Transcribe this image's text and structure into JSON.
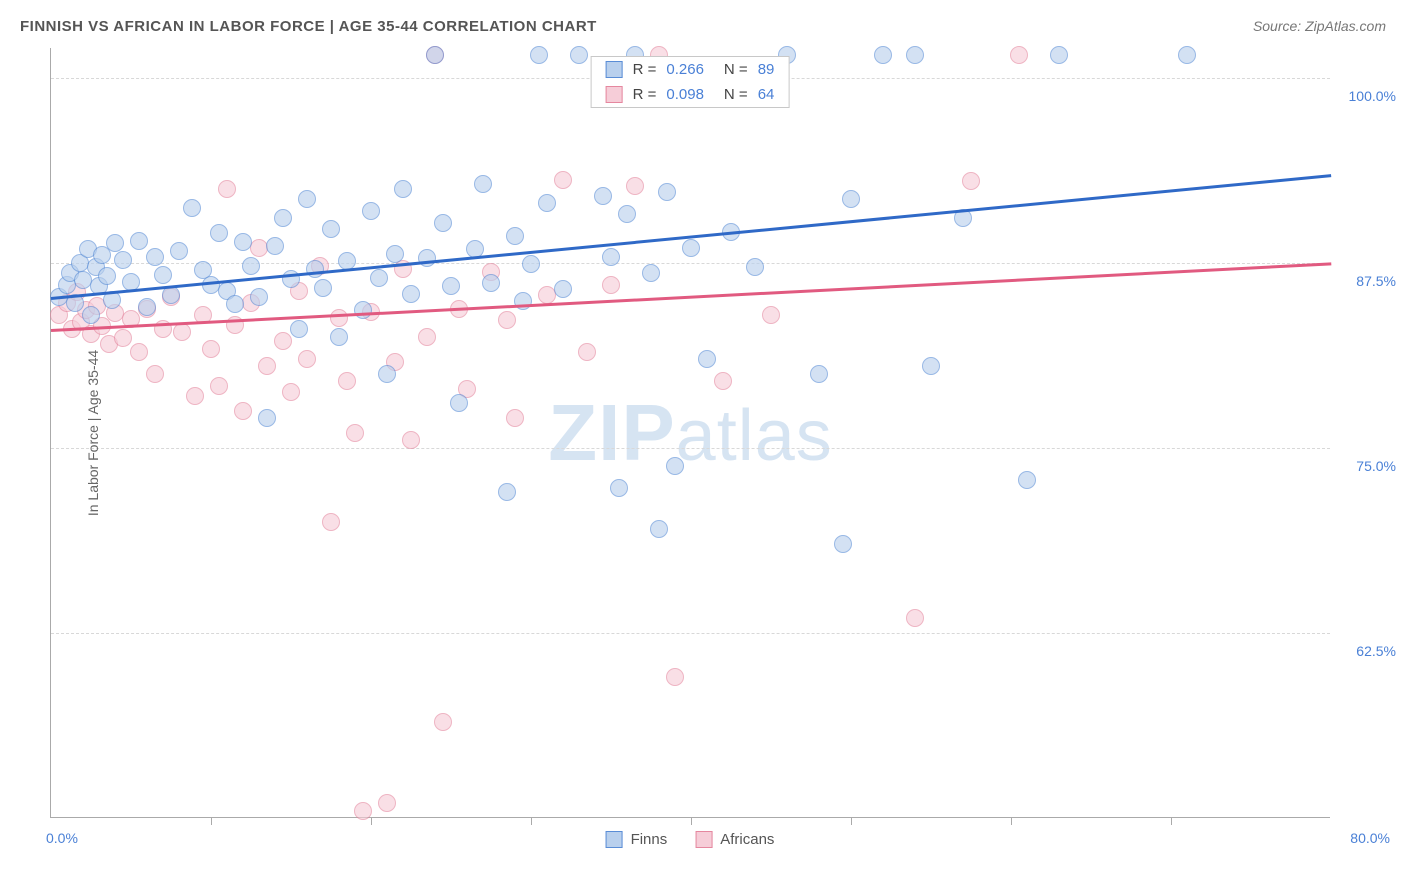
{
  "title": "FINNISH VS AFRICAN IN LABOR FORCE | AGE 35-44 CORRELATION CHART",
  "source": "Source: ZipAtlas.com",
  "watermark": {
    "bold": "ZIP",
    "rest": "atlas"
  },
  "chart": {
    "type": "scatter",
    "background_color": "#ffffff",
    "grid_color": "#d8d8d8",
    "axis_color": "#aaaaaa",
    "y_axis_label": "In Labor Force | Age 35-44",
    "y_axis_label_color": "#666666",
    "tick_label_color": "#4a80d6",
    "xlim": [
      0,
      80
    ],
    "ylim": [
      50,
      102
    ],
    "xlim_labels": [
      "0.0%",
      "80.0%"
    ],
    "xtick_positions": [
      10,
      20,
      30,
      40,
      50,
      60,
      70
    ],
    "yticks": [
      {
        "value": 62.5,
        "label": "62.5%"
      },
      {
        "value": 75.0,
        "label": "75.0%"
      },
      {
        "value": 87.5,
        "label": "87.5%"
      },
      {
        "value": 100.0,
        "label": "100.0%"
      }
    ],
    "marker_radius": 9,
    "marker_opacity": 0.62,
    "series": [
      {
        "name": "Finns",
        "color_fill": "#b9d0ed",
        "color_stroke": "#5a8dd6",
        "trend_color": "#2f69c7",
        "r_value": "0.266",
        "n_value": "89",
        "trend": {
          "x1": 0,
          "y1": 85.2,
          "x2": 80,
          "y2": 93.5
        },
        "points": [
          [
            0.5,
            85.2
          ],
          [
            1.0,
            86.0
          ],
          [
            1.2,
            86.8
          ],
          [
            1.5,
            84.8
          ],
          [
            1.8,
            87.5
          ],
          [
            2.0,
            86.3
          ],
          [
            2.3,
            88.4
          ],
          [
            2.5,
            84.0
          ],
          [
            2.8,
            87.2
          ],
          [
            3.0,
            85.9
          ],
          [
            3.2,
            88.0
          ],
          [
            3.5,
            86.6
          ],
          [
            3.8,
            85.0
          ],
          [
            4.0,
            88.8
          ],
          [
            4.5,
            87.7
          ],
          [
            5.0,
            86.2
          ],
          [
            5.5,
            89.0
          ],
          [
            6.0,
            84.5
          ],
          [
            6.5,
            87.9
          ],
          [
            7.0,
            86.7
          ],
          [
            7.5,
            85.3
          ],
          [
            8.0,
            88.3
          ],
          [
            8.8,
            91.2
          ],
          [
            9.5,
            87.0
          ],
          [
            10.0,
            86.0
          ],
          [
            10.5,
            89.5
          ],
          [
            11.0,
            85.6
          ],
          [
            11.5,
            84.7
          ],
          [
            12.0,
            88.9
          ],
          [
            12.5,
            87.3
          ],
          [
            13.0,
            85.2
          ],
          [
            13.5,
            77.0
          ],
          [
            14.0,
            88.6
          ],
          [
            14.5,
            90.5
          ],
          [
            15.0,
            86.4
          ],
          [
            15.5,
            83.0
          ],
          [
            16.0,
            91.8
          ],
          [
            16.5,
            87.1
          ],
          [
            17.0,
            85.8
          ],
          [
            17.5,
            89.8
          ],
          [
            18.0,
            82.5
          ],
          [
            18.5,
            87.6
          ],
          [
            19.5,
            84.3
          ],
          [
            20.0,
            91.0
          ],
          [
            20.5,
            86.5
          ],
          [
            21.0,
            80.0
          ],
          [
            21.5,
            88.1
          ],
          [
            22.0,
            92.5
          ],
          [
            22.5,
            85.4
          ],
          [
            23.5,
            87.8
          ],
          [
            24.0,
            101.5
          ],
          [
            24.5,
            90.2
          ],
          [
            25.0,
            85.9
          ],
          [
            25.5,
            78.0
          ],
          [
            26.5,
            88.4
          ],
          [
            27.0,
            92.8
          ],
          [
            27.5,
            86.1
          ],
          [
            28.5,
            72.0
          ],
          [
            29.0,
            89.3
          ],
          [
            29.5,
            84.9
          ],
          [
            30.0,
            87.4
          ],
          [
            30.5,
            101.5
          ],
          [
            31.0,
            91.5
          ],
          [
            32.0,
            85.7
          ],
          [
            33.0,
            101.5
          ],
          [
            34.5,
            92.0
          ],
          [
            35.0,
            87.9
          ],
          [
            35.5,
            72.3
          ],
          [
            36.0,
            90.8
          ],
          [
            36.5,
            101.5
          ],
          [
            37.5,
            86.8
          ],
          [
            38.0,
            69.5
          ],
          [
            38.5,
            92.3
          ],
          [
            39.0,
            73.8
          ],
          [
            40.0,
            88.5
          ],
          [
            41.0,
            81.0
          ],
          [
            42.5,
            89.6
          ],
          [
            44.0,
            87.2
          ],
          [
            46.0,
            101.5
          ],
          [
            48.0,
            80.0
          ],
          [
            50.0,
            91.8
          ],
          [
            49.5,
            68.5
          ],
          [
            52.0,
            101.5
          ],
          [
            54.0,
            101.5
          ],
          [
            55.0,
            80.5
          ],
          [
            57.0,
            90.5
          ],
          [
            61.0,
            72.8
          ],
          [
            63.0,
            101.5
          ],
          [
            71.0,
            101.5
          ]
        ]
      },
      {
        "name": "Africans",
        "color_fill": "#f6cdd8",
        "color_stroke": "#e5879f",
        "trend_color": "#e15a80",
        "r_value": "0.098",
        "n_value": "64",
        "trend": {
          "x1": 0,
          "y1": 83.0,
          "x2": 80,
          "y2": 87.5
        },
        "points": [
          [
            0.5,
            84.0
          ],
          [
            1.0,
            84.8
          ],
          [
            1.3,
            83.0
          ],
          [
            1.6,
            85.5
          ],
          [
            1.9,
            83.5
          ],
          [
            2.2,
            84.3
          ],
          [
            2.5,
            82.7
          ],
          [
            2.9,
            84.6
          ],
          [
            3.2,
            83.2
          ],
          [
            3.6,
            82.0
          ],
          [
            4.0,
            84.1
          ],
          [
            4.5,
            82.4
          ],
          [
            5.0,
            83.7
          ],
          [
            5.5,
            81.5
          ],
          [
            6.0,
            84.4
          ],
          [
            6.5,
            80.0
          ],
          [
            7.0,
            83.0
          ],
          [
            7.5,
            85.2
          ],
          [
            8.2,
            82.8
          ],
          [
            9.0,
            78.5
          ],
          [
            9.5,
            84.0
          ],
          [
            10.0,
            81.7
          ],
          [
            10.5,
            79.2
          ],
          [
            11.0,
            92.5
          ],
          [
            11.5,
            83.3
          ],
          [
            12.0,
            77.5
          ],
          [
            12.5,
            84.8
          ],
          [
            13.0,
            88.5
          ],
          [
            13.5,
            80.5
          ],
          [
            14.5,
            82.2
          ],
          [
            15.0,
            78.8
          ],
          [
            15.5,
            85.6
          ],
          [
            16.0,
            81.0
          ],
          [
            16.8,
            87.3
          ],
          [
            17.5,
            70.0
          ],
          [
            18.0,
            83.8
          ],
          [
            18.5,
            79.5
          ],
          [
            19.0,
            76.0
          ],
          [
            19.5,
            50.5
          ],
          [
            20.0,
            84.2
          ],
          [
            21.0,
            51.0
          ],
          [
            21.5,
            80.8
          ],
          [
            22.0,
            87.1
          ],
          [
            22.5,
            75.5
          ],
          [
            23.5,
            82.5
          ],
          [
            24.0,
            101.5
          ],
          [
            24.5,
            56.5
          ],
          [
            25.5,
            84.4
          ],
          [
            26.0,
            79.0
          ],
          [
            27.5,
            86.9
          ],
          [
            28.5,
            83.6
          ],
          [
            29.0,
            77.0
          ],
          [
            31.0,
            85.3
          ],
          [
            32.0,
            93.1
          ],
          [
            33.5,
            81.5
          ],
          [
            35.0,
            86.0
          ],
          [
            36.5,
            92.7
          ],
          [
            38.0,
            101.5
          ],
          [
            39.0,
            59.5
          ],
          [
            42.0,
            79.5
          ],
          [
            45.0,
            84.0
          ],
          [
            54.0,
            63.5
          ],
          [
            57.5,
            93.0
          ],
          [
            60.5,
            101.5
          ]
        ]
      }
    ],
    "legend_bottom": [
      {
        "label": "Finns",
        "fill": "#b9d0ed",
        "stroke": "#5a8dd6"
      },
      {
        "label": "Africans",
        "fill": "#f6cdd8",
        "stroke": "#e5879f"
      }
    ]
  }
}
